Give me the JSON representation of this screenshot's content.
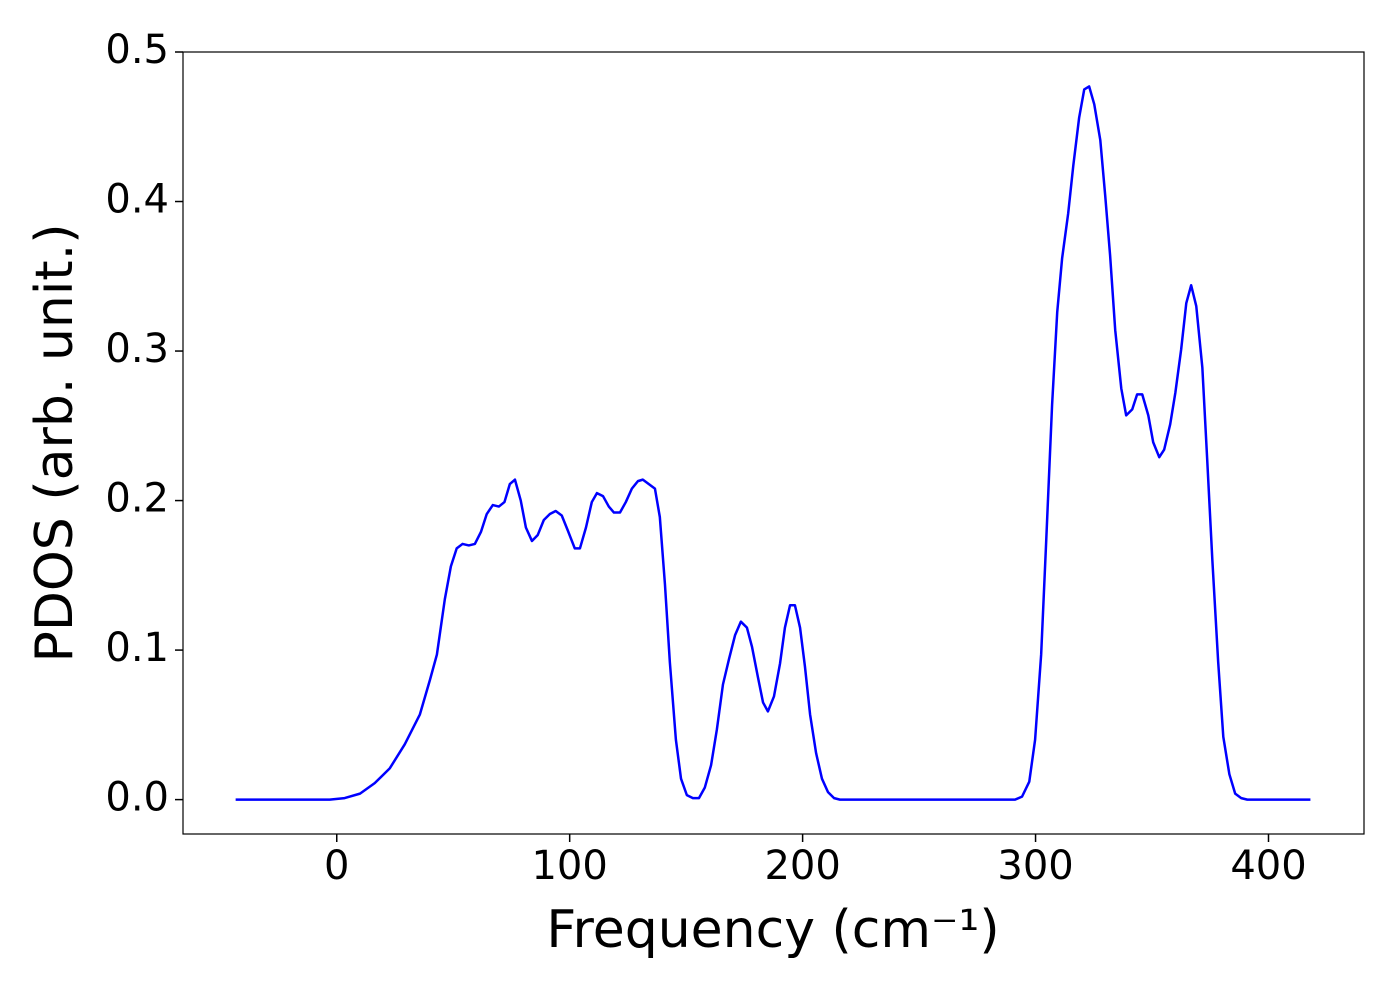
{
  "chart_data": {
    "type": "line",
    "xlabel": "Frequency (cm⁻¹)",
    "ylabel": "PDOS (arb. unit.)",
    "xlim": [
      -66,
      441
    ],
    "ylim": [
      -0.023,
      0.5
    ],
    "xticks": [
      0,
      100,
      200,
      300,
      400
    ],
    "yticks": [
      {
        "value": 0,
        "label": "0.0"
      },
      0.1,
      0.2,
      0.3,
      0.4,
      0.5
    ],
    "series": [
      {
        "color": "#0000ff",
        "x": [
          -43.4,
          -3,
          3.4,
          10,
          16.3,
          22.8,
          29.2,
          35.7,
          40,
          43,
          46.4,
          49,
          51.5,
          54,
          56.7,
          59.3,
          61.9,
          64.4,
          67,
          69.6,
          72,
          74.3,
          76.5,
          79,
          81.2,
          83.8,
          86.3,
          88.9,
          91.5,
          94,
          96.6,
          99.2,
          102.2,
          104.4,
          107,
          109.5,
          111.7,
          114.3,
          116.8,
          119,
          121.6,
          124.1,
          126.7,
          129.3,
          131.4,
          134,
          136.6,
          138.7,
          140.9,
          143,
          145.6,
          147.8,
          150.3,
          152.9,
          155.5,
          158,
          160.7,
          163.2,
          165.8,
          168.4,
          171,
          173.5,
          176.1,
          178.3,
          180.8,
          183,
          185.1,
          187.7,
          190.3,
          192.4,
          194.6,
          196.7,
          198.9,
          201,
          203.2,
          205.8,
          208.3,
          210.9,
          213.5,
          216,
          291.2,
          294.2,
          297.3,
          299.8,
          302.4,
          304.6,
          307.1,
          309.3,
          311.4,
          314,
          316.2,
          318.7,
          320.9,
          323,
          325.2,
          327.8,
          329.9,
          332,
          334.2,
          336.8,
          338.9,
          341.5,
          343.6,
          345.8,
          348.4,
          350.5,
          353.1,
          355.2,
          357.8,
          360,
          362.5,
          364.7,
          366.8,
          369,
          371.6,
          373.7,
          375.9,
          378.4,
          380.6,
          383.2,
          385.7,
          388.3,
          390.9,
          418
        ],
        "values": [
          0,
          0,
          0.001,
          0.004,
          0.011,
          0.021,
          0.037,
          0.057,
          0.08,
          0.097,
          0.134,
          0.156,
          0.168,
          0.171,
          0.17,
          0.171,
          0.179,
          0.191,
          0.197,
          0.196,
          0.199,
          0.211,
          0.214,
          0.2,
          0.182,
          0.173,
          0.177,
          0.187,
          0.191,
          0.193,
          0.19,
          0.18,
          0.168,
          0.168,
          0.182,
          0.199,
          0.205,
          0.203,
          0.196,
          0.192,
          0.192,
          0.199,
          0.208,
          0.213,
          0.214,
          0.211,
          0.208,
          0.189,
          0.144,
          0.092,
          0.04,
          0.014,
          0.003,
          0.001,
          0.001,
          0.008,
          0.023,
          0.047,
          0.077,
          0.094,
          0.11,
          0.119,
          0.115,
          0.102,
          0.082,
          0.065,
          0.059,
          0.069,
          0.091,
          0.115,
          0.13,
          0.13,
          0.115,
          0.089,
          0.057,
          0.031,
          0.014,
          0.005,
          0.001,
          0,
          0,
          0.002,
          0.012,
          0.04,
          0.097,
          0.174,
          0.264,
          0.326,
          0.362,
          0.392,
          0.424,
          0.456,
          0.475,
          0.477,
          0.465,
          0.441,
          0.404,
          0.364,
          0.314,
          0.275,
          0.257,
          0.261,
          0.271,
          0.271,
          0.257,
          0.239,
          0.229,
          0.234,
          0.251,
          0.272,
          0.301,
          0.332,
          0.344,
          0.33,
          0.289,
          0.227,
          0.16,
          0.092,
          0.042,
          0.017,
          0.004,
          0.001,
          0,
          0
        ]
      }
    ]
  }
}
